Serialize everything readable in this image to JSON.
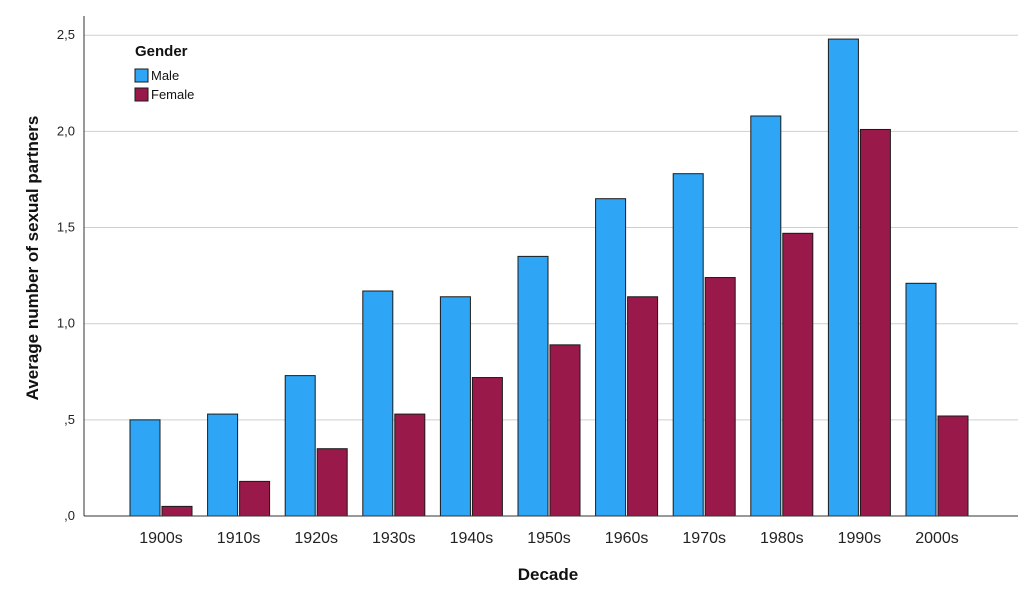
{
  "chart_data": {
    "type": "bar",
    "title": "",
    "xlabel": "Decade",
    "ylabel": "Average number of sexual partners",
    "categories": [
      "1900s",
      "1910s",
      "1920s",
      "1930s",
      "1940s",
      "1950s",
      "1960s",
      "1970s",
      "1980s",
      "1990s",
      "2000s"
    ],
    "series": [
      {
        "name": "Male",
        "color": "#2ea6f5",
        "values": [
          0.5,
          0.53,
          0.73,
          1.17,
          1.14,
          1.35,
          1.65,
          1.78,
          2.08,
          2.48,
          1.21
        ]
      },
      {
        "name": "Female",
        "color": "#98194a",
        "values": [
          0.05,
          0.18,
          0.35,
          0.53,
          0.72,
          0.89,
          1.14,
          1.24,
          1.47,
          2.01,
          0.52
        ]
      }
    ],
    "ylim": [
      0,
      2.6
    ],
    "yticks": [
      {
        "value": 0,
        "label": ",0"
      },
      {
        "value": 0.5,
        "label": ",5"
      },
      {
        "value": 1.0,
        "label": "1,0"
      },
      {
        "value": 1.5,
        "label": "1,5"
      },
      {
        "value": 2.0,
        "label": "2,0"
      },
      {
        "value": 2.5,
        "label": "2,5"
      }
    ],
    "grid": true,
    "legend": {
      "title": "Gender",
      "position": "top-left"
    }
  }
}
